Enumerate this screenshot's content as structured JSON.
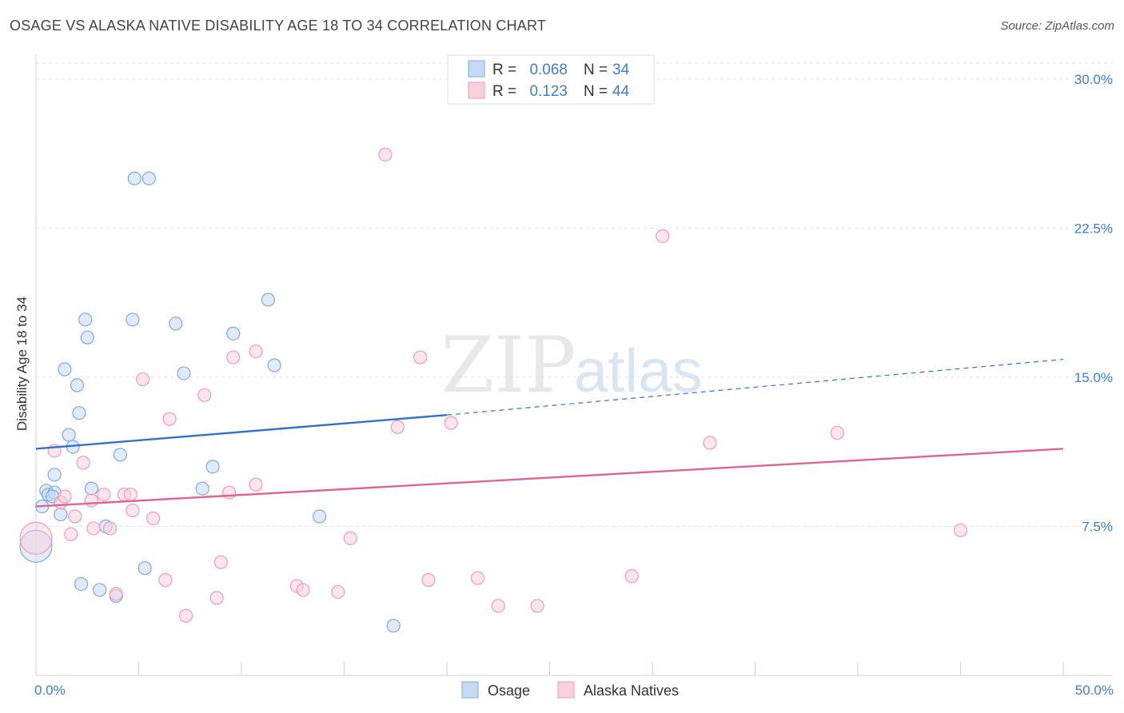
{
  "header": {
    "title": "OSAGE VS ALASKA NATIVE DISABILITY AGE 18 TO 34 CORRELATION CHART",
    "source": "Source: ZipAtlas.com"
  },
  "watermark": {
    "zip": "ZIP",
    "atlas": "atlas"
  },
  "chart_data": {
    "type": "scatter",
    "ylabel": "Disability Age 18 to 34",
    "xlim": [
      0,
      50
    ],
    "ylim": [
      0,
      31
    ],
    "x_tick_labels": [
      "0.0%",
      "50.0%"
    ],
    "y_ticks": [
      7.5,
      15.0,
      22.5,
      30.0
    ],
    "y_tick_labels": [
      "7.5%",
      "15.0%",
      "22.5%",
      "30.0%"
    ],
    "grid": true,
    "legend_position": "top-center",
    "bottom_legend": [
      "Osage",
      "Alaska Natives"
    ],
    "series": [
      {
        "name": "Osage",
        "legend_r_label": "R = ",
        "r_value": "0.068",
        "legend_n_label": "N = ",
        "n_value": "34",
        "color": "#7da9e0",
        "fill": "#c5daf5",
        "line_color": "#2f72c9",
        "trend": {
          "x0": 0,
          "y0": 11.4,
          "x1": 20,
          "y1": 13.1,
          "dash_to": 50,
          "dash_y": 15.9
        },
        "points": [
          [
            4.8,
            25.0
          ],
          [
            5.5,
            25.0
          ],
          [
            11.3,
            18.9
          ],
          [
            2.4,
            17.9
          ],
          [
            4.7,
            17.9
          ],
          [
            6.8,
            17.7
          ],
          [
            9.6,
            17.2
          ],
          [
            2.5,
            17.0
          ],
          [
            11.6,
            15.6
          ],
          [
            1.4,
            15.4
          ],
          [
            7.2,
            15.2
          ],
          [
            2.0,
            14.6
          ],
          [
            2.1,
            13.2
          ],
          [
            1.6,
            12.1
          ],
          [
            1.8,
            11.5
          ],
          [
            4.1,
            11.1
          ],
          [
            8.6,
            10.5
          ],
          [
            0.9,
            10.1
          ],
          [
            0.5,
            9.3
          ],
          [
            0.6,
            9.1
          ],
          [
            0.9,
            9.2
          ],
          [
            2.7,
            9.4
          ],
          [
            8.1,
            9.4
          ],
          [
            0.3,
            8.5
          ],
          [
            1.2,
            8.1
          ],
          [
            13.8,
            8.0
          ],
          [
            3.4,
            7.5
          ],
          [
            0.0,
            6.5
          ],
          [
            5.3,
            5.4
          ],
          [
            2.2,
            4.6
          ],
          [
            3.1,
            4.3
          ],
          [
            3.9,
            4.0
          ],
          [
            17.4,
            2.5
          ],
          [
            0.8,
            9.0
          ]
        ]
      },
      {
        "name": "Alaska Natives",
        "legend_r_label": "R = ",
        "r_value": "0.123",
        "legend_n_label": "N = ",
        "n_value": "44",
        "color": "#f29bb6",
        "fill": "#fad0dd",
        "line_color": "#e0638e",
        "trend": {
          "x0": 0,
          "y0": 8.5,
          "x1": 50,
          "y1": 11.4
        },
        "points": [
          [
            17.0,
            26.2
          ],
          [
            30.5,
            22.1
          ],
          [
            10.7,
            16.3
          ],
          [
            9.6,
            16.0
          ],
          [
            18.7,
            16.0
          ],
          [
            5.2,
            14.9
          ],
          [
            8.2,
            14.1
          ],
          [
            6.5,
            12.9
          ],
          [
            20.2,
            12.7
          ],
          [
            17.6,
            12.5
          ],
          [
            39.0,
            12.2
          ],
          [
            32.8,
            11.7
          ],
          [
            0.9,
            11.3
          ],
          [
            2.3,
            10.7
          ],
          [
            10.7,
            9.6
          ],
          [
            9.4,
            9.2
          ],
          [
            3.3,
            9.1
          ],
          [
            4.3,
            9.1
          ],
          [
            4.6,
            9.1
          ],
          [
            1.2,
            8.7
          ],
          [
            2.7,
            8.8
          ],
          [
            4.7,
            8.3
          ],
          [
            1.9,
            8.0
          ],
          [
            5.7,
            7.9
          ],
          [
            2.8,
            7.4
          ],
          [
            3.6,
            7.4
          ],
          [
            1.7,
            7.1
          ],
          [
            15.3,
            6.9
          ],
          [
            45.0,
            7.3
          ],
          [
            0.0,
            6.9
          ],
          [
            9.0,
            5.7
          ],
          [
            6.3,
            4.8
          ],
          [
            12.7,
            4.5
          ],
          [
            13.0,
            4.3
          ],
          [
            14.7,
            4.2
          ],
          [
            19.1,
            4.8
          ],
          [
            21.5,
            4.9
          ],
          [
            29.0,
            5.0
          ],
          [
            8.8,
            3.9
          ],
          [
            3.9,
            4.1
          ],
          [
            22.5,
            3.5
          ],
          [
            24.4,
            3.5
          ],
          [
            7.3,
            3.0
          ],
          [
            1.4,
            9.0
          ]
        ]
      }
    ]
  }
}
